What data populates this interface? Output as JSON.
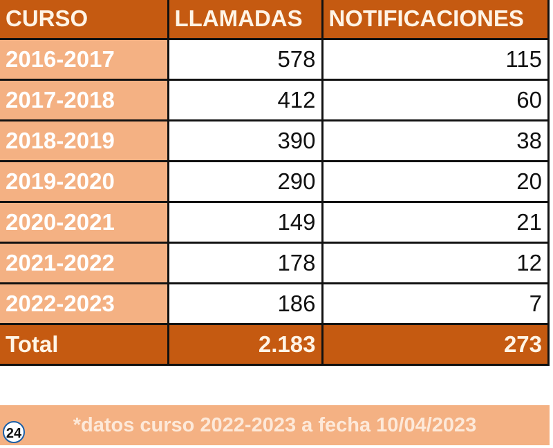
{
  "table": {
    "headers": [
      "CURSO",
      "LLAMADAS",
      "NOTIFICACIONES"
    ],
    "rows": [
      [
        "2016-2017",
        "578",
        "115"
      ],
      [
        "2017-2018",
        "412",
        "60"
      ],
      [
        "2018-2019",
        "390",
        "38"
      ],
      [
        "2019-2020",
        "290",
        "20"
      ],
      [
        "2020-2021",
        "149",
        "21"
      ],
      [
        "2021-2022",
        "178",
        "12"
      ],
      [
        "2022-2023",
        "186",
        "7"
      ]
    ],
    "total": [
      "Total",
      "2.183",
      "273"
    ]
  },
  "footnote": "*datos curso 2022-2023 a fecha 10/04/2023",
  "logo": "24",
  "colors": {
    "header": "#C55A11",
    "first_column": "#F4B183",
    "footnote_band": "#F4B183"
  }
}
